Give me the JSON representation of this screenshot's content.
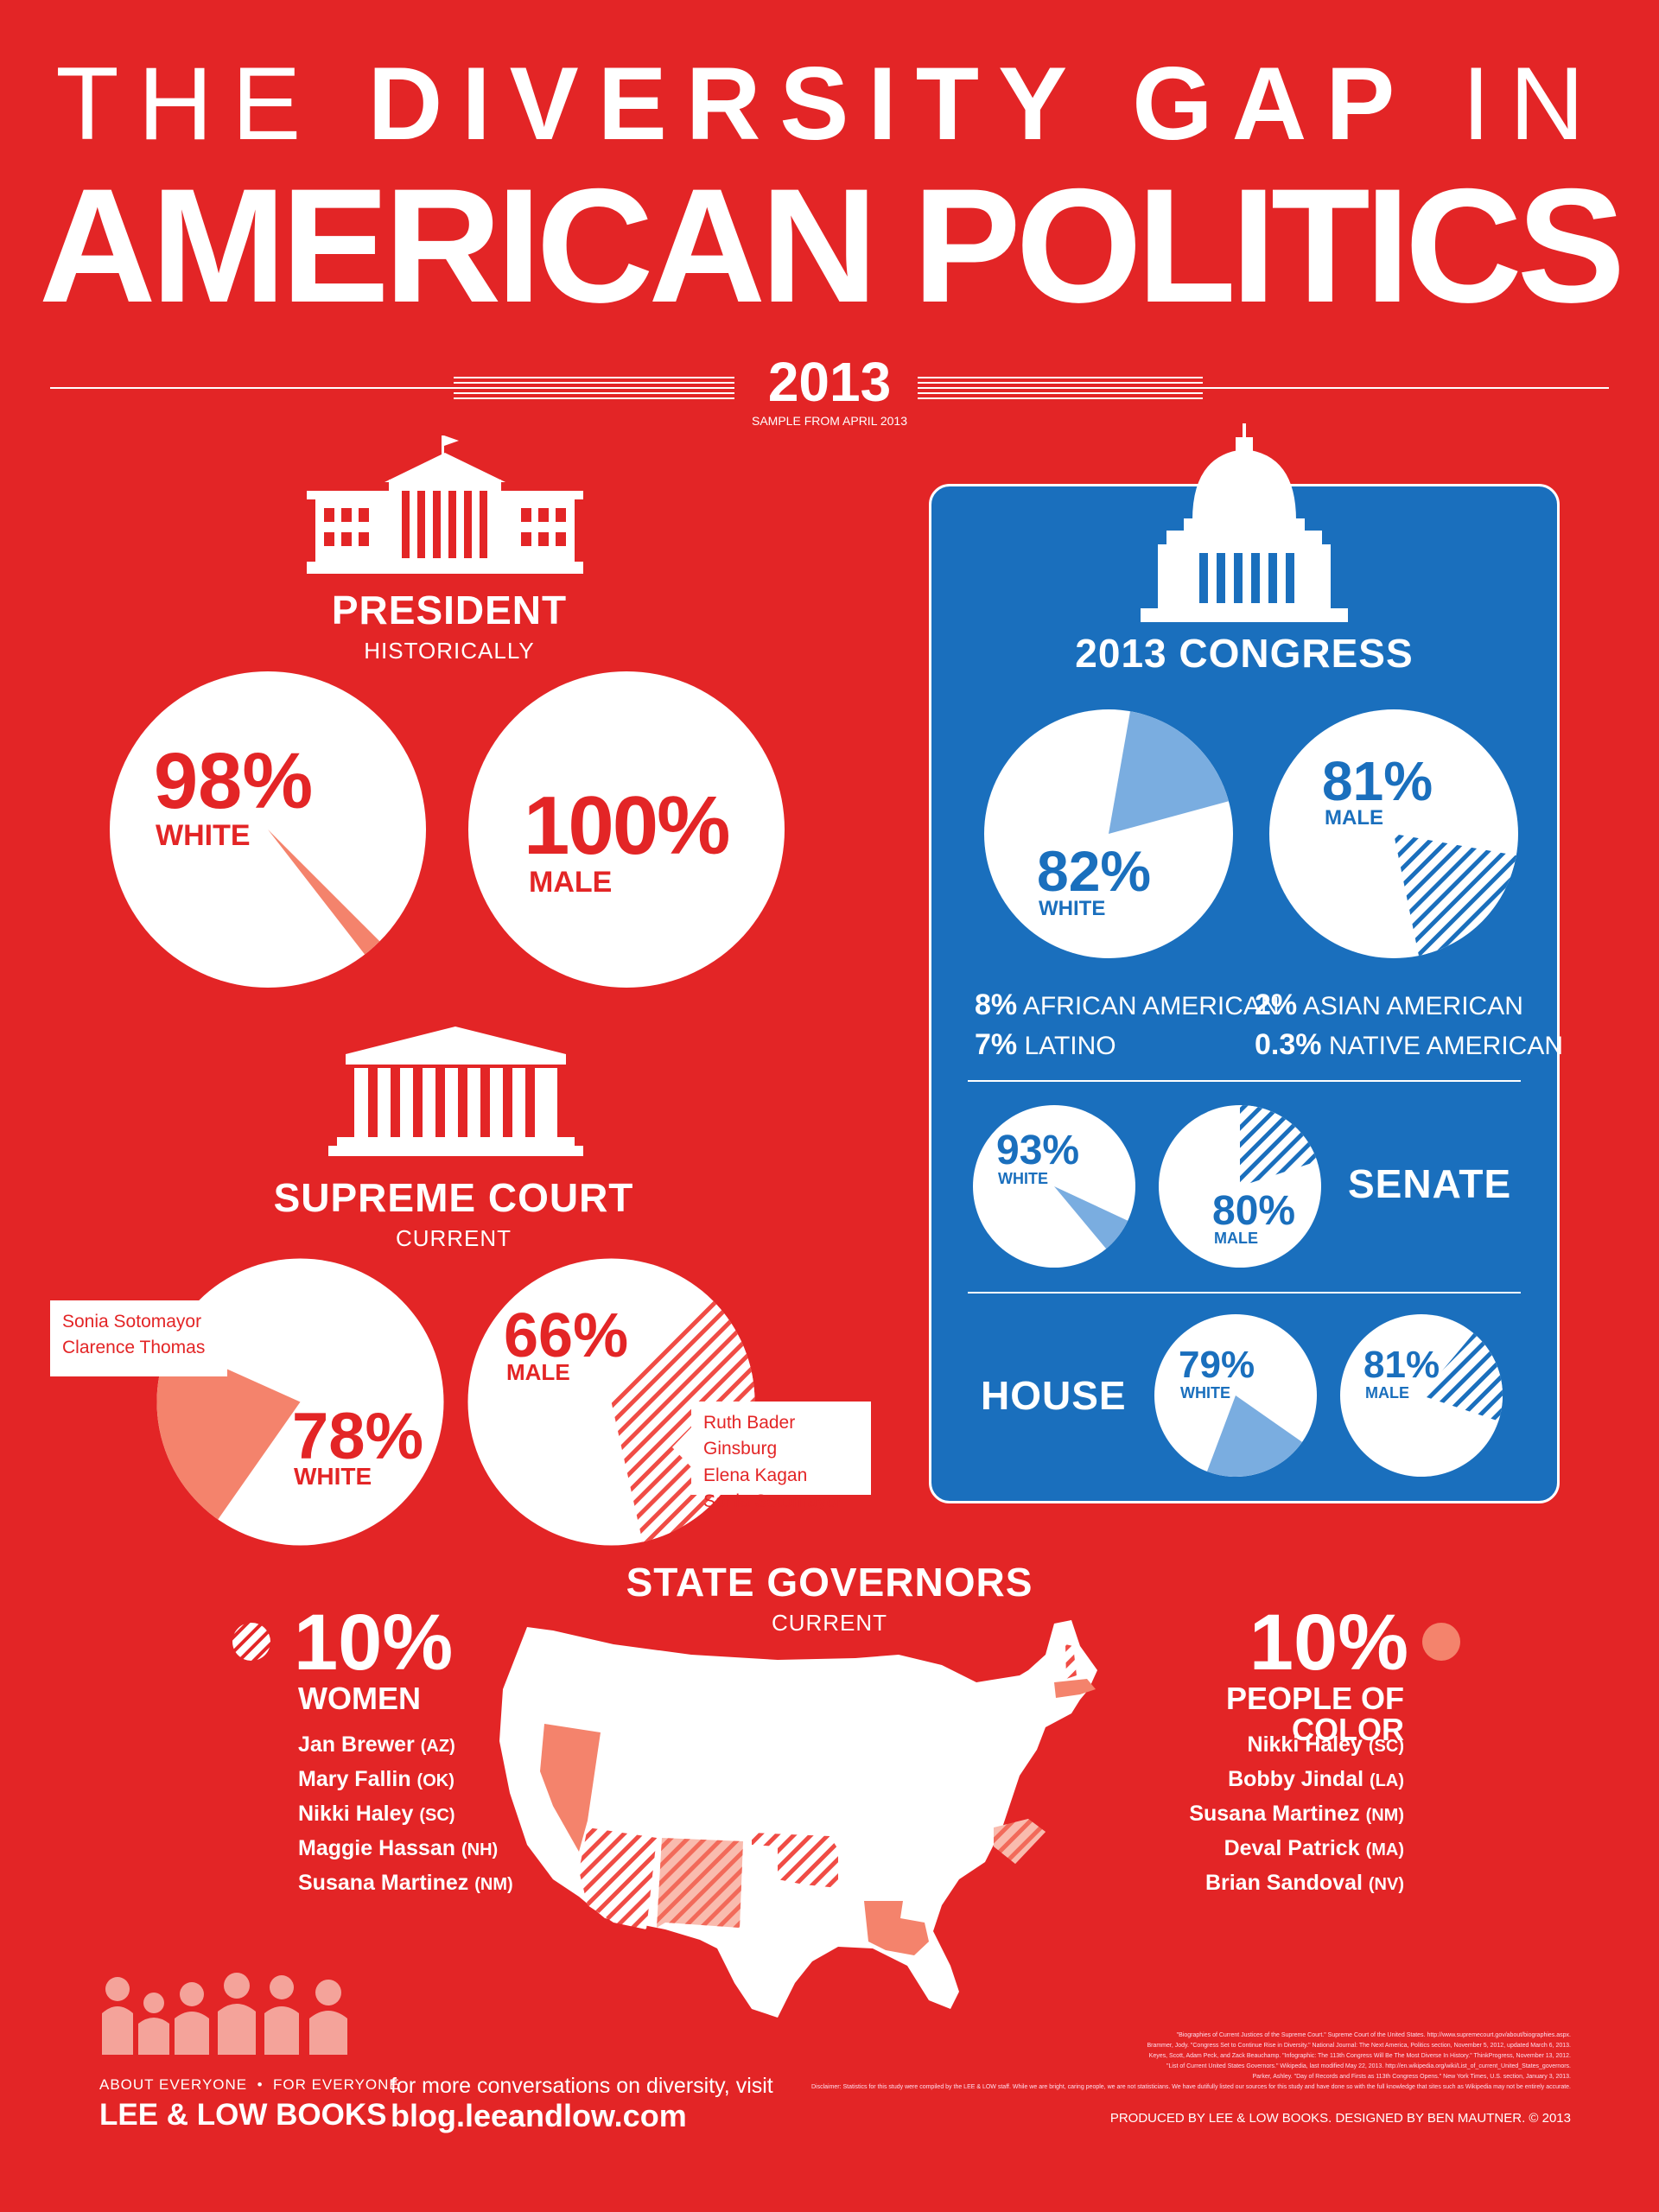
{
  "title": {
    "line1_light": "THE",
    "line1_bold": "DIVERSITY GAP",
    "line1_end": "IN",
    "line2": "AMERICAN POLITICS"
  },
  "year": "2013",
  "sample": "SAMPLE FROM APRIL 2013",
  "colors": {
    "background": "#e32526",
    "congress_panel": "#1a6fbd",
    "light_blue": "#7aade0",
    "salmon": "#f4836c",
    "white": "#ffffff"
  },
  "president": {
    "heading": "PRESIDENT",
    "subheading": "HISTORICALLY",
    "icon": "white-house-icon",
    "white": {
      "value": "98%",
      "label": "WHITE"
    },
    "male": {
      "value": "100%",
      "label": "MALE"
    }
  },
  "supreme_court": {
    "heading": "SUPREME COURT",
    "subheading": "CURRENT",
    "icon": "courthouse-icon",
    "white": {
      "value": "78%",
      "label": "WHITE"
    },
    "male": {
      "value": "66%",
      "label": "MALE"
    },
    "nonwhite_justices": [
      "Sonia Sotomayor",
      "Clarence Thomas"
    ],
    "female_justices": [
      "Ruth Bader Ginsburg",
      "Elena Kagan",
      "Sonia Sotomayor"
    ]
  },
  "congress": {
    "heading": "2013 CONGRESS",
    "icon": "capitol-icon",
    "white": {
      "value": "82%",
      "label": "WHITE"
    },
    "male": {
      "value": "81%",
      "label": "MALE"
    },
    "stats": [
      {
        "value": "8%",
        "label": "AFRICAN AMERICAN"
      },
      {
        "value": "7%",
        "label": "LATINO"
      },
      {
        "value": "2%",
        "label": "ASIAN AMERICAN"
      },
      {
        "value": "0.3%",
        "label": "NATIVE AMERICAN"
      }
    ],
    "senate": {
      "label": "SENATE",
      "white": {
        "value": "93%",
        "label": "WHITE"
      },
      "male": {
        "value": "80%",
        "label": "MALE"
      }
    },
    "house": {
      "label": "HOUSE",
      "white": {
        "value": "79%",
        "label": "WHITE"
      },
      "male": {
        "value": "81%",
        "label": "MALE"
      }
    }
  },
  "governors": {
    "heading": "STATE GOVERNORS",
    "subheading": "CURRENT",
    "women": {
      "value": "10%",
      "label": "WOMEN",
      "names": [
        {
          "name": "Jan Brewer",
          "state": "(AZ)"
        },
        {
          "name": "Mary Fallin",
          "state": "(OK)"
        },
        {
          "name": "Nikki Haley",
          "state": "(SC)"
        },
        {
          "name": "Maggie Hassan",
          "state": "(NH)"
        },
        {
          "name": "Susana Martinez",
          "state": "(NM)"
        }
      ]
    },
    "poc": {
      "value": "10%",
      "label": "PEOPLE OF COLOR",
      "names": [
        {
          "name": "Nikki Haley",
          "state": "(SC)"
        },
        {
          "name": "Bobby Jindal",
          "state": "(LA)"
        },
        {
          "name": "Susana Martinez",
          "state": "(NM)"
        },
        {
          "name": "Deval Patrick",
          "state": "(MA)"
        },
        {
          "name": "Brian Sandoval",
          "state": "(NV)"
        }
      ]
    }
  },
  "chart_data": [
    {
      "type": "pie",
      "title": "PRESIDENT",
      "slices": [
        {
          "label": "WHITE",
          "value": 98
        },
        {
          "label": "",
          "value": 2
        }
      ]
    },
    {
      "type": "pie",
      "title": "PRESIDENT",
      "slices": [
        {
          "label": "MALE",
          "value": 100
        }
      ]
    },
    {
      "type": "pie",
      "title": "SUPREME COURT",
      "slices": [
        {
          "label": "WHITE",
          "value": 78
        },
        {
          "label": "",
          "value": 22
        }
      ]
    },
    {
      "type": "pie",
      "title": "SUPREME COURT",
      "slices": [
        {
          "label": "MALE",
          "value": 66
        },
        {
          "label": "",
          "value": 34
        }
      ]
    },
    {
      "type": "pie",
      "title": "2013 CONGRESS",
      "slices": [
        {
          "label": "WHITE",
          "value": 82
        },
        {
          "label": "",
          "value": 18
        }
      ]
    },
    {
      "type": "pie",
      "title": "2013 CONGRESS",
      "slices": [
        {
          "label": "MALE",
          "value": 81
        },
        {
          "label": "",
          "value": 19
        }
      ]
    },
    {
      "type": "pie",
      "title": "SENATE",
      "slices": [
        {
          "label": "WHITE",
          "value": 93
        },
        {
          "label": "",
          "value": 7
        }
      ]
    },
    {
      "type": "pie",
      "title": "SENATE",
      "slices": [
        {
          "label": "MALE",
          "value": 80
        },
        {
          "label": "",
          "value": 20
        }
      ]
    },
    {
      "type": "pie",
      "title": "HOUSE",
      "slices": [
        {
          "label": "WHITE",
          "value": 79
        },
        {
          "label": "",
          "value": 21
        }
      ]
    },
    {
      "type": "pie",
      "title": "HOUSE",
      "slices": [
        {
          "label": "MALE",
          "value": 81
        },
        {
          "label": "",
          "value": 19
        }
      ]
    }
  ],
  "footer": {
    "tagline": "ABOUT EVERYONE  •  FOR EVERYONE",
    "brand": "LEE & LOW BOOKS",
    "cta": "for more conversations on diversity, visit",
    "url": "blog.leeandlow.com",
    "credit": "PRODUCED BY LEE & LOW BOOKS. DESIGNED BY BEN MAUTNER. © 2013",
    "footnotes": [
      "\"Biographies of Current Justices of the Supreme Court.\" Supreme Court of the United States. http://www.supremecourt.gov/about/biographies.aspx.",
      "Brammer, Jody. \"Congress Set to Continue Rise in Diversity.\" National Journal: The Next America, Politics section, November 5, 2012, updated March 6, 2013.",
      "Keyes, Scott, Adam Peck, and Zack Beauchamp. \"Infographic: The 113th Congress Will Be The Most Diverse In History.\" ThinkProgress, November 13, 2012.",
      "\"List of Current United States Governors.\" Wikipedia, last modified May 22, 2013. http://en.wikipedia.org/wiki/List_of_current_United_States_governors.",
      "Parker, Ashley. \"Day of Records and Firsts as 113th Congress Opens.\" New York Times, U.S. section, January 3, 2013.",
      "Disclaimer: Statistics for this study were compiled by the LEE & LOW staff. While we are bright, caring people, we are not statisticians. We have dutifully listed our sources for this study and have done so with the full knowledge that sites such as Wikipedia may not be entirely accurate."
    ]
  }
}
